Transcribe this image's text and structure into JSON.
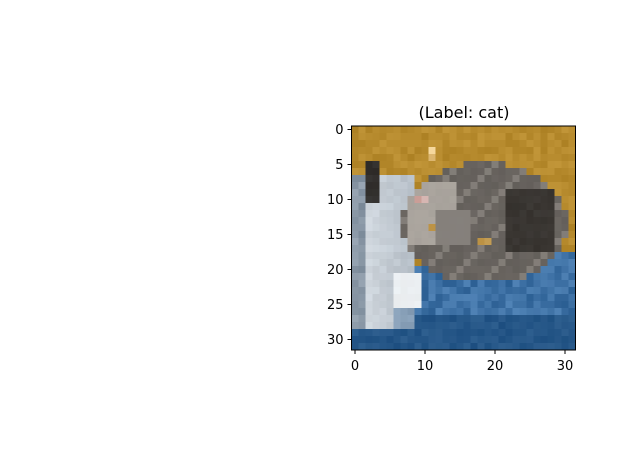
{
  "chart_data": {
    "type": "image",
    "title": "(Label: cat)",
    "image_size": [
      32,
      32
    ],
    "xlim": [
      -0.5,
      31.5
    ],
    "ylim": [
      31.5,
      -0.5
    ],
    "x_ticks": [
      0,
      10,
      20,
      30
    ],
    "y_ticks": [
      0,
      5,
      10,
      15,
      20,
      25,
      30
    ],
    "x_tick_labels": [
      "0",
      "10",
      "20",
      "30"
    ],
    "y_tick_labels": [
      "0",
      "5",
      "10",
      "15",
      "20",
      "25",
      "30"
    ],
    "palette": {
      "background_orange": "#b78b2e",
      "blanket_blue": "#2b5f94",
      "blanket_light": "#6f9fcf",
      "cat_dark": "#3f3b37",
      "cat_gray": "#7f7a75",
      "cat_light": "#c9c3bb",
      "paper_white": "#e9eef3",
      "paper_gray": "#a7b1bb",
      "ear_pink": "#d3a7a0",
      "eye_gold": "#b48a3c"
    }
  }
}
